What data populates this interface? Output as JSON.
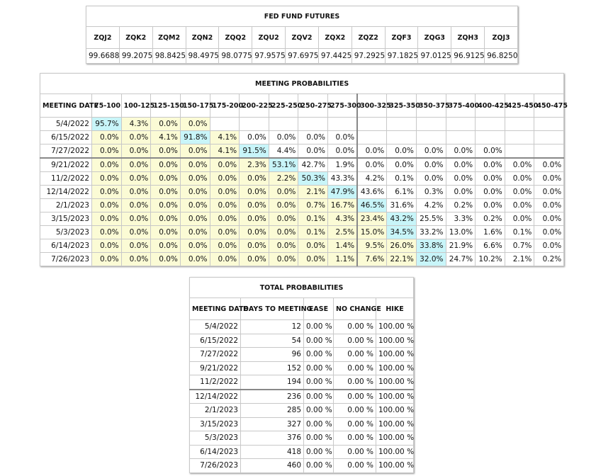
{
  "fed_fund_futures": {
    "title": "FED FUND FUTURES",
    "columns": [
      "ZQJ2",
      "ZQK2",
      "ZQM2",
      "ZQN2",
      "ZQQ2",
      "ZQU2",
      "ZQV2",
      "ZQX2",
      "ZQZ2",
      "ZQF3",
      "ZQG3",
      "ZQH3",
      "ZQJ3"
    ],
    "values": [
      "99.6688",
      "99.2075",
      "98.8425",
      "98.4975",
      "98.0775",
      "97.9575",
      "97.6975",
      "97.4425",
      "97.2925",
      "97.1825",
      "97.0125",
      "96.9125",
      "96.8250"
    ]
  },
  "meeting_probabilities": {
    "title": "MEETING PROBABILITIES",
    "columns": [
      "MEETING DATE",
      "75-100",
      "100-125",
      "125-150",
      "150-175",
      "175-200",
      "200-225",
      "225-250",
      "250-275",
      "275-300",
      "300-325",
      "325-350",
      "350-375",
      "375-400",
      "400-425",
      "425-450",
      "450-475"
    ],
    "rows": [
      {
        "date": "5/4/2022",
        "cells": [
          "95.7%",
          "4.3%",
          "0.0%",
          "0.0%",
          "",
          "",
          "",
          "",
          "",
          "",
          "",
          "",
          "",
          "",
          "",
          ""
        ]
      },
      {
        "date": "6/15/2022",
        "cells": [
          "0.0%",
          "0.0%",
          "4.1%",
          "91.8%",
          "4.1%",
          "0.0%",
          "0.0%",
          "0.0%",
          "0.0%",
          "",
          "",
          "",
          "",
          "",
          "",
          ""
        ]
      },
      {
        "date": "7/27/2022",
        "cells": [
          "0.0%",
          "0.0%",
          "0.0%",
          "0.0%",
          "4.1%",
          "91.5%",
          "4.4%",
          "0.0%",
          "0.0%",
          "0.0%",
          "0.0%",
          "0.0%",
          "0.0%",
          "0.0%",
          "",
          ""
        ]
      },
      {
        "date": "9/21/2022",
        "cells": [
          "0.0%",
          "0.0%",
          "0.0%",
          "0.0%",
          "0.0%",
          "2.3%",
          "53.1%",
          "42.7%",
          "1.9%",
          "0.0%",
          "0.0%",
          "0.0%",
          "0.0%",
          "0.0%",
          "0.0%",
          "0.0%"
        ]
      },
      {
        "date": "11/2/2022",
        "cells": [
          "0.0%",
          "0.0%",
          "0.0%",
          "0.0%",
          "0.0%",
          "0.0%",
          "2.2%",
          "50.3%",
          "43.3%",
          "4.2%",
          "0.1%",
          "0.0%",
          "0.0%",
          "0.0%",
          "0.0%",
          "0.0%"
        ]
      },
      {
        "date": "12/14/2022",
        "cells": [
          "0.0%",
          "0.0%",
          "0.0%",
          "0.0%",
          "0.0%",
          "0.0%",
          "0.0%",
          "2.1%",
          "47.9%",
          "43.6%",
          "6.1%",
          "0.3%",
          "0.0%",
          "0.0%",
          "0.0%",
          "0.0%"
        ]
      },
      {
        "date": "2/1/2023",
        "cells": [
          "0.0%",
          "0.0%",
          "0.0%",
          "0.0%",
          "0.0%",
          "0.0%",
          "0.0%",
          "0.7%",
          "16.7%",
          "46.5%",
          "31.6%",
          "4.2%",
          "0.2%",
          "0.0%",
          "0.0%",
          "0.0%"
        ]
      },
      {
        "date": "3/15/2023",
        "cells": [
          "0.0%",
          "0.0%",
          "0.0%",
          "0.0%",
          "0.0%",
          "0.0%",
          "0.0%",
          "0.1%",
          "4.3%",
          "23.4%",
          "43.2%",
          "25.5%",
          "3.3%",
          "0.2%",
          "0.0%",
          "0.0%"
        ]
      },
      {
        "date": "5/3/2023",
        "cells": [
          "0.0%",
          "0.0%",
          "0.0%",
          "0.0%",
          "0.0%",
          "0.0%",
          "0.0%",
          "0.1%",
          "2.5%",
          "15.0%",
          "34.5%",
          "33.2%",
          "13.0%",
          "1.6%",
          "0.1%",
          "0.0%"
        ]
      },
      {
        "date": "6/14/2023",
        "cells": [
          "0.0%",
          "0.0%",
          "0.0%",
          "0.0%",
          "0.0%",
          "0.0%",
          "0.0%",
          "0.0%",
          "1.4%",
          "9.5%",
          "26.0%",
          "33.8%",
          "21.9%",
          "6.6%",
          "0.7%",
          "0.0%"
        ]
      },
      {
        "date": "7/26/2023",
        "cells": [
          "0.0%",
          "0.0%",
          "0.0%",
          "0.0%",
          "0.0%",
          "0.0%",
          "0.0%",
          "0.0%",
          "1.1%",
          "7.6%",
          "22.1%",
          "32.0%",
          "24.7%",
          "10.2%",
          "2.1%",
          "0.2%"
        ]
      }
    ],
    "cell_styles": [
      "cyyywwwwwwwwwwww",
      "yyyc ywwwwwwwwww",
      "yyyyyc wwwwwwwww",
      "yyyyyyc wwwwwwww",
      "yyyyyyyc wwwwwww",
      "yyyyyyyyc wwwwww",
      "yyyyyyyyyc wwwww",
      "yyyyyyyyyyc wwww",
      "yyyyyyyyyyc wwww",
      "yyyyyyyyyyyc www",
      "yyyyyyyyyyyc www"
    ]
  },
  "total_probabilities": {
    "title": "TOTAL PROBABILITIES",
    "columns": [
      "MEETING DATE",
      "DAYS TO MEETING",
      "EASE",
      "NO CHANGE",
      "HIKE"
    ],
    "rows": [
      [
        "5/4/2022",
        "12",
        "0.00 %",
        "0.00 %",
        "100.00 %"
      ],
      [
        "6/15/2022",
        "54",
        "0.00 %",
        "0.00 %",
        "100.00 %"
      ],
      [
        "7/27/2022",
        "96",
        "0.00 %",
        "0.00 %",
        "100.00 %"
      ],
      [
        "9/21/2022",
        "152",
        "0.00 %",
        "0.00 %",
        "100.00 %"
      ],
      [
        "11/2/2022",
        "194",
        "0.00 %",
        "0.00 %",
        "100.00 %"
      ],
      [
        "12/14/2022",
        "236",
        "0.00 %",
        "0.00 %",
        "100.00 %"
      ],
      [
        "2/1/2023",
        "285",
        "0.00 %",
        "0.00 %",
        "100.00 %"
      ],
      [
        "3/15/2023",
        "327",
        "0.00 %",
        "0.00 %",
        "100.00 %"
      ],
      [
        "5/3/2023",
        "376",
        "0.00 %",
        "0.00 %",
        "100.00 %"
      ],
      [
        "6/14/2023",
        "418",
        "0.00 %",
        "0.00 %",
        "100.00 %"
      ],
      [
        "7/26/2023",
        "460",
        "0.00 %",
        "0.00 %",
        "100.00 %"
      ]
    ]
  },
  "colors": {
    "yellow_fill": "#fbfbd5",
    "cyan_fill": "#c8f5f9",
    "grid": "#c8c8c8"
  }
}
